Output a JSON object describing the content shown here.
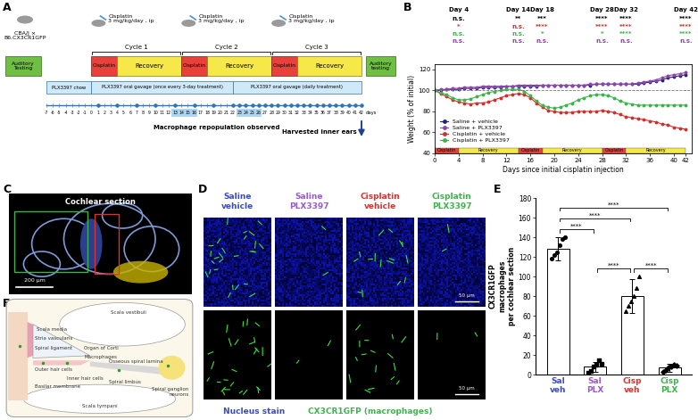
{
  "panel_letters": [
    "A",
    "B",
    "C",
    "D",
    "E",
    "F"
  ],
  "timeline": {
    "strain": "CBA/J ×\nB6.CX3CR1GFP",
    "injection_label": "Cisplatin\n3 mg/kg/day , ip",
    "cycles": [
      {
        "name": "Cycle 1",
        "cisplatin": [
          0,
          4
        ],
        "recovery": [
          4,
          14
        ]
      },
      {
        "name": "Cycle 2",
        "cisplatin": [
          14,
          18
        ],
        "recovery": [
          18,
          28
        ]
      },
      {
        "name": "Cycle 3",
        "cisplatin": [
          28,
          32
        ],
        "recovery": [
          32,
          42
        ]
      }
    ],
    "cisplatin_label": "Cisplatin",
    "recovery_label": "Recovery",
    "auditory_testing_start": "Auditory\nTesting",
    "auditory_testing_end": "Auditory\ntesting",
    "treatments": [
      {
        "label": "PLX3397 chow",
        "days": [
          -7,
          0
        ]
      },
      {
        "label": "PLX3397 oral gavage (once every 3-day treatment)",
        "days": [
          0,
          22
        ]
      },
      {
        "label": "PLX3397 oral gavage (daily treatment)",
        "days": [
          22,
          42
        ]
      }
    ],
    "days": [
      -7,
      -6,
      -5,
      -4,
      -3,
      -2,
      -1,
      0,
      1,
      2,
      3,
      4,
      5,
      6,
      7,
      8,
      9,
      10,
      11,
      12,
      13,
      14,
      15,
      16,
      17,
      18,
      19,
      20,
      21,
      22,
      23,
      24,
      25,
      26,
      27,
      28,
      29,
      30,
      31,
      32,
      33,
      34,
      35,
      36,
      37,
      38,
      39,
      40,
      41,
      42
    ],
    "days_unit": "days",
    "gavage_days": [
      1,
      4,
      7,
      10,
      13,
      16,
      19,
      22,
      23,
      24,
      25,
      26,
      27,
      28,
      29,
      30,
      31,
      32,
      33,
      34,
      35,
      36,
      37,
      38,
      39,
      40,
      41,
      42
    ],
    "repopulation_days": [
      13,
      14,
      15,
      16,
      23,
      24,
      25,
      26
    ],
    "repopulation_label": "Macrophage repopulation observed",
    "harvest_label": "Harvested inner ears"
  },
  "chart_data": [
    {
      "type": "line",
      "xlabel": "Days since initial cisplatin injection",
      "ylabel": "Weight (% of initial)",
      "x": [
        0,
        1,
        2,
        3,
        4,
        5,
        6,
        7,
        8,
        9,
        10,
        11,
        12,
        13,
        14,
        15,
        16,
        17,
        18,
        19,
        20,
        21,
        22,
        23,
        24,
        25,
        26,
        27,
        28,
        29,
        30,
        31,
        32,
        33,
        34,
        35,
        36,
        37,
        38,
        39,
        40,
        41,
        42
      ],
      "xlim": [
        0,
        43
      ],
      "xticks": [
        0,
        4,
        8,
        12,
        16,
        20,
        24,
        28,
        32,
        36,
        40,
        42
      ],
      "ylim": [
        40,
        125
      ],
      "yticks": [
        40,
        60,
        80,
        100,
        120
      ],
      "reference_line": 100,
      "legend": "lower left",
      "series": [
        {
          "name": "Saline + vehicle",
          "color": "#23237a",
          "marker": "circle",
          "values": [
            100,
            100,
            101,
            101,
            101,
            102,
            102,
            102,
            103,
            103,
            103,
            103,
            104,
            104,
            104,
            104,
            104,
            104,
            105,
            105,
            105,
            105,
            105,
            105,
            105,
            105,
            105,
            106,
            106,
            106,
            106,
            106,
            106,
            106,
            106,
            107,
            108,
            109,
            110,
            112,
            113,
            114,
            115
          ]
        },
        {
          "name": "Saline + PLX3397",
          "color": "#8e44ad",
          "marker": "circle",
          "values": [
            100,
            101,
            101,
            102,
            102,
            103,
            103,
            103,
            104,
            104,
            104,
            104,
            104,
            104,
            105,
            105,
            105,
            105,
            105,
            105,
            105,
            105,
            105,
            105,
            105,
            105,
            106,
            106,
            106,
            106,
            106,
            106,
            106,
            106,
            107,
            108,
            109,
            110,
            112,
            114,
            115,
            116,
            117
          ]
        },
        {
          "name": "Cisplatin + vehicle",
          "color": "#d0312d",
          "marker": "circle",
          "values": [
            100,
            97,
            94,
            91,
            89,
            88,
            87,
            88,
            88,
            89,
            91,
            93,
            95,
            96,
            97,
            96,
            93,
            88,
            84,
            81,
            80,
            79,
            79,
            79,
            80,
            80,
            80,
            80,
            81,
            80,
            79,
            77,
            75,
            74,
            73,
            72,
            71,
            70,
            68,
            67,
            65,
            64,
            63
          ]
        },
        {
          "name": "Cisplatin + PLX3397",
          "color": "#3cb44b",
          "marker": "circle",
          "values": [
            100,
            98,
            96,
            93,
            91,
            91,
            92,
            94,
            96,
            98,
            99,
            100,
            101,
            101,
            101,
            99,
            95,
            90,
            86,
            84,
            83,
            84,
            86,
            88,
            91,
            93,
            95,
            96,
            96,
            95,
            93,
            90,
            88,
            87,
            86,
            86,
            86,
            86,
            86,
            86,
            86,
            86,
            86
          ]
        }
      ],
      "phases": [
        {
          "label": "Cisplatin",
          "days": [
            0,
            4
          ],
          "color": "#e8413b"
        },
        {
          "label": "Recovery",
          "days": [
            4,
            14
          ],
          "color": "#f7e84a"
        },
        {
          "label": "Cisplatin",
          "days": [
            14,
            18
          ],
          "color": "#e8413b"
        },
        {
          "label": "Recovery",
          "days": [
            18,
            28
          ],
          "color": "#f7e84a"
        },
        {
          "label": "Cisplatin",
          "days": [
            28,
            32
          ],
          "color": "#e8413b"
        },
        {
          "label": "Recovery",
          "days": [
            32,
            42
          ],
          "color": "#f7e84a"
        }
      ],
      "significance": {
        "days": [
          4,
          14,
          18,
          28,
          32,
          42
        ],
        "labels": [
          "Day 4",
          "Day 14",
          "Day 18",
          "Day 28",
          "Day 32",
          "Day 42"
        ],
        "rows": [
          {
            "color": "#000000",
            "labels": [
              "n.s.",
              "**",
              "***",
              "****",
              "****",
              "****"
            ]
          },
          {
            "color": "#d0312d",
            "labels": [
              "*",
              "n.s.",
              "****",
              "****",
              "****",
              "****"
            ]
          },
          {
            "color": "#3cb44b",
            "labels": [
              "n.s.",
              "n.s.",
              "*",
              "*",
              "****",
              "****"
            ]
          },
          {
            "color": "#8e44ad",
            "labels": [
              "n.s.",
              "n.s.",
              "n.s.",
              "n.s.",
              "n.s.",
              "n.s."
            ]
          }
        ]
      }
    },
    {
      "type": "bar",
      "categories": [
        "Sal\nveh",
        "Sal\nPLX",
        "Cisp\nveh",
        "Cisp\nPLX"
      ],
      "colors": [
        "#3b4cc0",
        "#9b59d0",
        "#e0302b",
        "#3cb44b"
      ],
      "values": [
        128,
        8,
        80,
        7
      ],
      "errors": [
        12,
        5,
        17,
        4
      ],
      "points": [
        [
          118,
          122,
          125,
          132,
          138,
          140
        ],
        [
          2,
          4,
          8,
          10,
          15,
          11
        ],
        [
          65,
          70,
          75,
          80,
          88,
          100
        ],
        [
          3,
          5,
          7,
          8,
          10,
          9
        ]
      ],
      "markers": [
        "circle",
        "square",
        "triangle",
        "diamond"
      ],
      "ylabel": "CX3CR1GFP\nmacrophages\nper cochlear section",
      "ylim": [
        0,
        180
      ],
      "yticks": [
        0,
        20,
        40,
        60,
        80,
        100,
        120,
        140,
        160,
        180
      ],
      "comparisons": [
        {
          "pair": [
            0,
            1
          ],
          "label": "****"
        },
        {
          "pair": [
            0,
            2
          ],
          "label": "****"
        },
        {
          "pair": [
            0,
            3
          ],
          "label": "****"
        },
        {
          "pair": [
            1,
            2
          ],
          "label": "****"
        },
        {
          "pair": [
            2,
            3
          ],
          "label": "****"
        }
      ]
    }
  ],
  "cochlear_section": {
    "title": "Cochlear section",
    "scale_bar": "200 µm"
  },
  "micrographs": {
    "columns": [
      {
        "label": "Saline\nvehicle",
        "color": "#3b4cc0"
      },
      {
        "label": "Saline\nPLX3397",
        "color": "#9b59d0"
      },
      {
        "label": "Cisplatin\nvehicle",
        "color": "#e0302b"
      },
      {
        "label": "Cisplatin\nPLX3397",
        "color": "#3cb44b"
      }
    ],
    "scale_bar": "50 µm",
    "stains": [
      {
        "label": "Nucleus stain",
        "color": "#3b4cc0"
      },
      {
        "label": "CX3CR1GFP (macrophages)",
        "color": "#3cb44b"
      }
    ]
  },
  "schematic": {
    "labels": [
      "Scala vestibuli",
      "Scala media",
      "Stria vascularis",
      "Spiral ligament",
      "Organ of Corti",
      "Macrophages",
      "Outer hair cells",
      "Inner hair cells",
      "Osseous spiral lamina",
      "Spiral limbus",
      "Basilar membrane",
      "Scala tympani",
      "Spiral ganglion\nneurons"
    ]
  }
}
